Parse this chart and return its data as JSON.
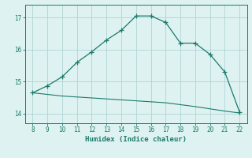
{
  "upper_x": [
    8,
    9,
    10,
    11,
    12,
    13,
    14,
    15,
    16,
    17,
    18,
    19,
    20,
    21,
    22
  ],
  "upper_y": [
    14.65,
    14.87,
    15.15,
    15.6,
    15.93,
    16.3,
    16.6,
    17.05,
    17.05,
    16.85,
    16.2,
    16.2,
    15.85,
    15.3,
    14.05
  ],
  "lower_x": [
    8,
    9,
    10,
    11,
    12,
    13,
    14,
    15,
    16,
    17,
    18,
    19,
    20,
    21,
    22
  ],
  "lower_y": [
    14.65,
    14.6,
    14.55,
    14.52,
    14.49,
    14.46,
    14.43,
    14.4,
    14.37,
    14.34,
    14.28,
    14.22,
    14.15,
    14.08,
    14.02
  ],
  "line_color": "#1a7a6a",
  "bg_color": "#dff2f2",
  "grid_color": "#aed4d4",
  "xlabel": "Humidex (Indice chaleur)",
  "ylim": [
    13.7,
    17.4
  ],
  "xlim": [
    7.5,
    22.5
  ],
  "yticks": [
    14,
    15,
    16,
    17
  ],
  "xticks": [
    8,
    9,
    10,
    11,
    12,
    13,
    14,
    15,
    16,
    17,
    18,
    19,
    20,
    21,
    22
  ]
}
